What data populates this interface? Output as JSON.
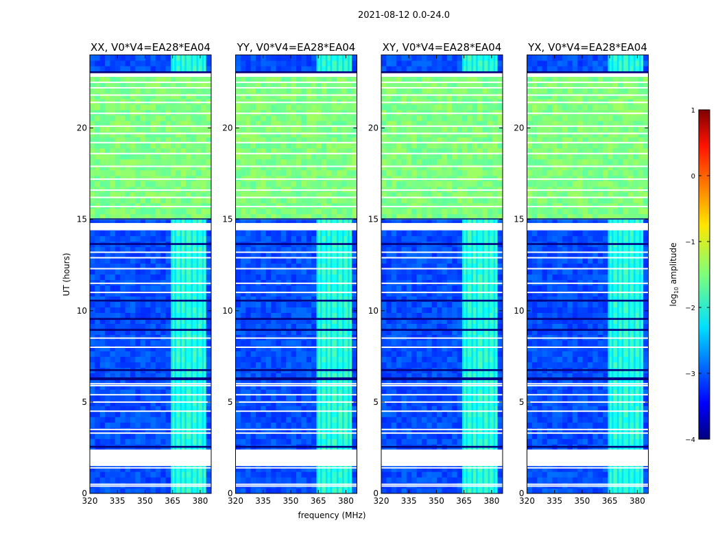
{
  "chart_data": {
    "type": "heatmap",
    "suptitle": "2021-08-12 0.0-24.0",
    "xlabel": "frequency (MHz)",
    "ylabel": "UT (hours)",
    "xlim": [
      320,
      386
    ],
    "ylim": [
      0,
      24
    ],
    "x_ticks": [
      320,
      335,
      350,
      365,
      380
    ],
    "y_ticks": [
      0,
      5,
      10,
      15,
      20
    ],
    "panels": [
      {
        "title": "XX, V0*V4=EA28*EA04",
        "polarization": "XX"
      },
      {
        "title": "YY, V0*V4=EA28*EA04",
        "polarization": "YY"
      },
      {
        "title": "XY, V0*V4=EA28*EA04",
        "polarization": "XY"
      },
      {
        "title": "YX, V0*V4=EA28*EA04",
        "polarization": "YX"
      }
    ],
    "colorbar": {
      "label": "log10 amplitude",
      "label_main": "log",
      "label_sub": "10",
      "label_rest": " amplitude",
      "range": [
        -4,
        1
      ],
      "ticks": [
        1,
        0,
        -1,
        -2,
        -3,
        -4
      ],
      "colormap": "jet"
    },
    "regions": {
      "rfi_band_mhz": [
        363.5,
        383
      ],
      "high_amplitude_hours": [
        15.0,
        22.8
      ],
      "high_amplitude_log_amp": -1.5,
      "background_log_amp": -3.0,
      "flagged_blank_hours": [
        [
          1.5,
          2.4
        ],
        [
          14.4,
          14.8
        ],
        [
          22.8,
          23.0
        ]
      ],
      "flagged_dark_hours": [
        [
          2.5,
          2.6
        ],
        [
          6.2,
          6.35
        ],
        [
          6.7,
          6.8
        ],
        [
          8.9,
          9.0
        ],
        [
          9.5,
          9.6
        ],
        [
          10.5,
          10.6
        ],
        [
          13.6,
          13.7
        ],
        [
          22.95,
          23.1
        ],
        [
          15.0,
          15.05
        ]
      ],
      "flagged_white_line_hours": [
        0.4,
        0.5,
        1.4,
        3.3,
        3.5,
        4.5,
        5.0,
        5.4,
        5.9,
        6.0,
        8.0,
        8.5,
        11.0,
        11.5,
        12.3,
        12.9,
        13.2,
        15.7,
        16.2,
        16.6,
        17.2,
        17.9,
        18.6,
        19.2,
        19.7,
        20.1,
        20.8,
        21.4,
        21.8,
        22.2,
        22.5
      ]
    }
  }
}
